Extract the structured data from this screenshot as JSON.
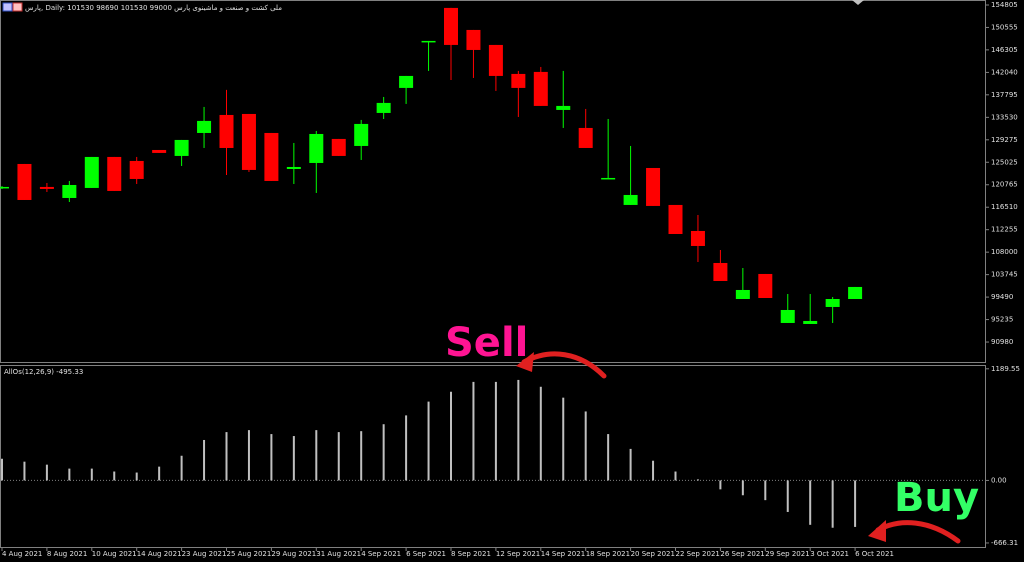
{
  "chart_data": [
    {
      "type": "candlestick",
      "title": "پارس, Daily:  101530 98690 101530 99000  ملی کشت و صنعت و ماشینوی پارس",
      "open": [
        120160,
        124700,
        120350,
        118260,
        120160,
        126030,
        125270,
        127350,
        126220,
        130570,
        133980,
        134170,
        130570,
        123750,
        124890,
        129440,
        128110,
        134360,
        139100,
        147810,
        154250,
        150080,
        147240,
        141750,
        142130,
        134930,
        131520,
        121860,
        116940,
        123940,
        116940,
        112010,
        105950,
        99130,
        103870,
        94590,
        94400,
        97620,
        99130
      ],
      "high": [
        120540,
        124700,
        121100,
        121480,
        126030,
        126030,
        126030,
        127350,
        129250,
        135500,
        138720,
        134170,
        130570,
        128680,
        130950,
        129440,
        133040,
        137390,
        141370,
        148000,
        154250,
        150080,
        147240,
        142320,
        143070,
        142320,
        135120,
        133220,
        128110,
        123940,
        116940,
        115040,
        108410,
        105000,
        103870,
        100080,
        100080,
        99510,
        101410
      ],
      "low": [
        119970,
        117880,
        119400,
        117500,
        120160,
        119590,
        120910,
        126790,
        124320,
        127730,
        122620,
        123190,
        121480,
        120910,
        119210,
        126220,
        125460,
        133220,
        136070,
        142320,
        140610,
        140990,
        138530,
        133600,
        135690,
        131520,
        127730,
        121860,
        116940,
        116750,
        111440,
        106140,
        102540,
        99130,
        99320,
        94590,
        94400,
        94590,
        99130
      ],
      "close": [
        120350,
        117880,
        119970,
        120720,
        126030,
        119590,
        121860,
        126790,
        129250,
        132850,
        127730,
        123570,
        121480,
        124130,
        130380,
        126220,
        132280,
        136260,
        141370,
        148000,
        147240,
        146290,
        141370,
        139100,
        135690,
        135690,
        127730,
        122050,
        118830,
        116750,
        111440,
        109170,
        102540,
        100840,
        99320,
        97050,
        94970,
        99130,
        101410
      ],
      "up_color": "#00ff00",
      "down_color": "#ff0000",
      "ylim": [
        87200,
        155750
      ],
      "yticks": [
        154805,
        150555,
        146305,
        142040,
        137795,
        133530,
        129275,
        125025,
        120765,
        116510,
        112255,
        108000,
        103745,
        99490,
        95235,
        90980
      ],
      "annotations": [
        {
          "text": "Sell",
          "color": "#ff1493"
        }
      ]
    },
    {
      "type": "bar",
      "title": "AllOs(12,26,9)",
      "last_value": -495.33,
      "categories": [
        "4 Aug 2021",
        null,
        "8 Aug 2021",
        null,
        "10 Aug 2021",
        null,
        "14 Aug 2021",
        null,
        "23 Aug 2021",
        null,
        "25 Aug 2021",
        null,
        "29 Aug 2021",
        null,
        "31 Aug 2021",
        null,
        "4 Sep 2021",
        null,
        "6 Sep 2021",
        null,
        "8 Sep 2021",
        null,
        "12 Sep 2021",
        null,
        "14 Sep 2021",
        null,
        "18 Sep 2021",
        null,
        "20 Sep 2021",
        null,
        "22 Sep 2021",
        null,
        "26 Sep 2021",
        null,
        "29 Sep 2021",
        null,
        "3 Oct 2021",
        null,
        "6 Oct 2021"
      ],
      "values": [
        231,
        200,
        168,
        126,
        126,
        95,
        84,
        147,
        263,
        431,
        515,
        536,
        494,
        473,
        536,
        515,
        525,
        599,
        693,
        840,
        945,
        1050,
        1050,
        1071,
        998,
        882,
        735,
        494,
        336,
        210,
        95,
        11,
        -95,
        -158,
        -210,
        -336,
        -473,
        -504,
        -495.33
      ],
      "color": "#c0c0c0",
      "ylim": [
        -720,
        1230
      ],
      "yticks": [
        1189.55,
        {
          "value": 0,
          "label": "0.00"
        },
        -666.31
      ],
      "annotations": [
        {
          "text": "Buy",
          "color": "#33ff66"
        }
      ]
    }
  ]
}
